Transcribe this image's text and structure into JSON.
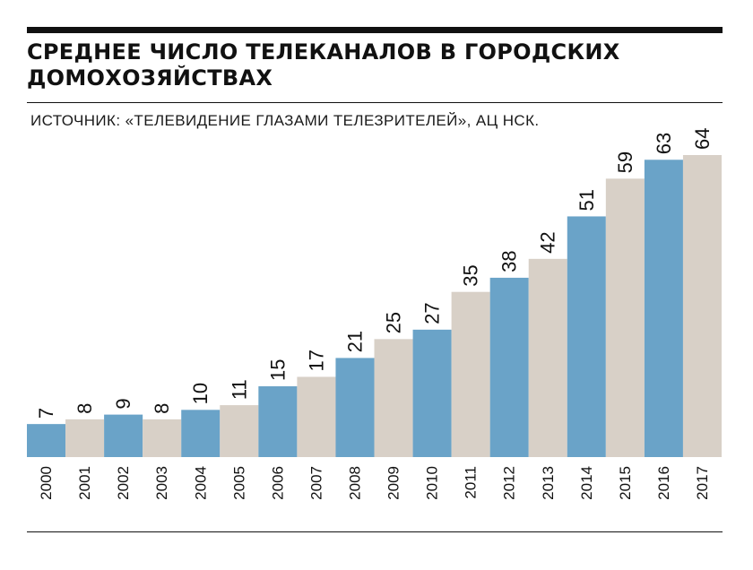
{
  "title": "СРЕДНЕЕ ЧИСЛО ТЕЛЕКАНАЛОВ В ГОРОДСКИХ ДОМОХОЗЯЙСТВАХ",
  "source": "ИСТОЧНИК: «ТЕЛЕВИДЕНИЕ ГЛАЗАМИ ТЕЛЕЗРИТЕЛЕЙ», АЦ НСК.",
  "colors": {
    "blue": "#6aa3c8",
    "beige": "#d8d0c7",
    "text": "#111111"
  },
  "chart_data": {
    "type": "bar",
    "title": "СРЕДНЕЕ ЧИСЛО ТЕЛЕКАНАЛОВ В ГОРОДСКИХ ДОМОХОЗЯЙСТВАХ",
    "xlabel": "",
    "ylabel": "",
    "categories": [
      "2000",
      "2001",
      "2002",
      "2003",
      "2004",
      "2005",
      "2006",
      "2007",
      "2008",
      "2009",
      "2010",
      "2011",
      "2012",
      "2013",
      "2014",
      "2015",
      "2016",
      "2017"
    ],
    "values": [
      7,
      8,
      9,
      8,
      10,
      11,
      15,
      17,
      21,
      25,
      27,
      35,
      38,
      42,
      51,
      59,
      63,
      64
    ],
    "bar_colors": [
      "#6aa3c8",
      "#d8d0c7",
      "#6aa3c8",
      "#d8d0c7",
      "#6aa3c8",
      "#d8d0c7",
      "#6aa3c8",
      "#d8d0c7",
      "#6aa3c8",
      "#d8d0c7",
      "#6aa3c8",
      "#d8d0c7",
      "#6aa3c8",
      "#d8d0c7",
      "#6aa3c8",
      "#d8d0c7",
      "#6aa3c8",
      "#d8d0c7"
    ],
    "ylim": [
      0,
      64
    ],
    "grid": false,
    "data_labels": true,
    "x_tick_rotation": -90
  }
}
